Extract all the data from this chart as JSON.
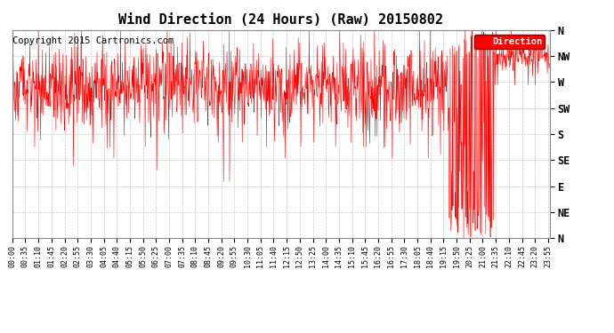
{
  "title": "Wind Direction (24 Hours) (Raw) 20150802",
  "copyright": "Copyright 2015 Cartronics.com",
  "legend_label": "Direction",
  "ytick_labels": [
    "N",
    "NW",
    "W",
    "SW",
    "S",
    "SE",
    "E",
    "NE",
    "N"
  ],
  "ytick_values": [
    360,
    315,
    270,
    225,
    180,
    135,
    90,
    45,
    0
  ],
  "ylim": [
    0,
    360
  ],
  "line_color": "#ff0000",
  "bg_color": "#ffffff",
  "grid_color": "#bbbbbb",
  "title_fontsize": 11,
  "copyright_fontsize": 7.5,
  "axis_label_fontsize": 8.5,
  "xtick_interval_minutes": 35,
  "total_minutes": 1440,
  "seed": 42
}
